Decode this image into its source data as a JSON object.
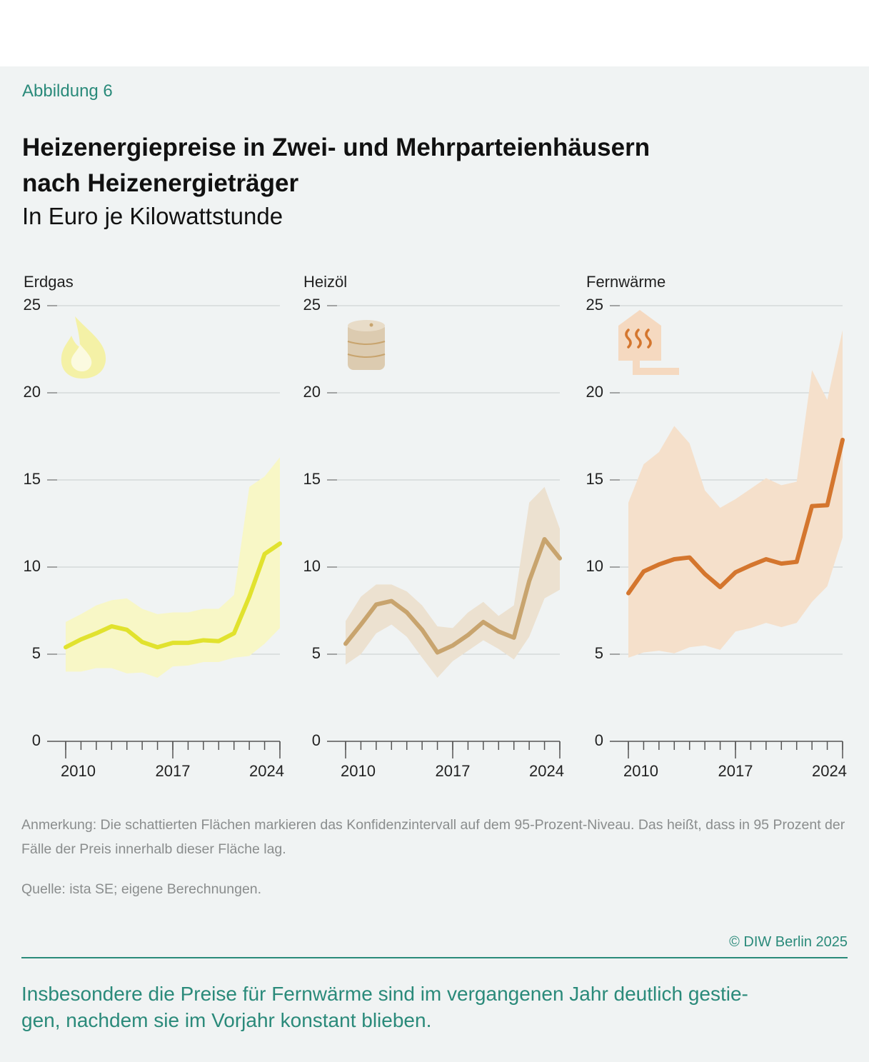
{
  "figure_label": "Abbildung 6",
  "title_lines": [
    "Heizenergiepreise in Zwei- und Mehrparteienhäusern",
    "nach Heizenergieträger"
  ],
  "subtitle": "In Euro je Kilowattstunde",
  "note": "Anmerkung: Die schattierten Flächen markieren das Konfidenzintervall auf dem 95-Prozent-Niveau. Das heißt, dass in 95 Prozent der Fälle der Preis innerhalb dieser Fläche lag.",
  "source": "Quelle: ista SE; eigene Berechnungen.",
  "copyright": "© DIW Berlin 2025",
  "caption_lines": [
    "Insbesondere die Preise für Fernwärme sind im vergangenen Jahr deutlich gestie-",
    "gen, nachdem sie im Vorjahr konstant blieben."
  ],
  "chart_data": [
    {
      "type": "line",
      "title": "Erdgas",
      "color": "#e1e22e",
      "band_color": "#f8f7c6",
      "x": [
        2010,
        2011,
        2012,
        2013,
        2014,
        2015,
        2016,
        2017,
        2018,
        2019,
        2020,
        2021,
        2022,
        2023,
        2024
      ],
      "values": [
        5.4,
        5.85,
        6.2,
        6.6,
        6.4,
        5.7,
        5.4,
        5.65,
        5.65,
        5.8,
        5.75,
        6.2,
        8.3,
        10.75,
        11.35
      ],
      "lower": [
        4.0,
        4.0,
        4.2,
        4.2,
        3.9,
        3.95,
        3.65,
        4.3,
        4.35,
        4.55,
        4.55,
        4.8,
        4.9,
        5.6,
        6.5
      ],
      "upper": [
        6.85,
        7.3,
        7.8,
        8.1,
        8.2,
        7.6,
        7.3,
        7.4,
        7.4,
        7.6,
        7.6,
        8.4,
        14.6,
        15.2,
        16.3
      ],
      "xlim": [
        2010,
        2024
      ],
      "xticks": [
        2010,
        2017,
        2024
      ],
      "ylim": [
        0,
        25
      ],
      "yticks": [
        0,
        5,
        10,
        15,
        20,
        25
      ],
      "grid": true
    },
    {
      "type": "line",
      "title": "Heizöl",
      "color": "#c8a46e",
      "band_color": "#ece1d0",
      "x": [
        2010,
        2011,
        2012,
        2013,
        2014,
        2015,
        2016,
        2017,
        2018,
        2019,
        2020,
        2021,
        2022,
        2023,
        2024
      ],
      "values": [
        5.6,
        6.7,
        7.85,
        8.05,
        7.4,
        6.4,
        5.1,
        5.5,
        6.1,
        6.85,
        6.3,
        5.95,
        9.2,
        11.6,
        10.5
      ],
      "lower": [
        4.4,
        5.0,
        6.2,
        6.7,
        6.0,
        4.8,
        3.65,
        4.6,
        5.2,
        5.8,
        5.3,
        4.7,
        6.0,
        8.2,
        8.7
      ],
      "upper": [
        6.9,
        8.3,
        9.0,
        9.0,
        8.6,
        7.8,
        6.6,
        6.5,
        7.4,
        8.0,
        7.2,
        7.8,
        13.7,
        14.6,
        12.2
      ],
      "xlim": [
        2010,
        2024
      ],
      "xticks": [
        2010,
        2017,
        2024
      ],
      "ylim": [
        0,
        25
      ],
      "yticks": [
        0,
        5,
        10,
        15,
        20,
        25
      ],
      "grid": true
    },
    {
      "type": "line",
      "title": "Fernwärme",
      "color": "#d4762e",
      "band_color": "#f5e0cb",
      "x": [
        2010,
        2011,
        2012,
        2013,
        2014,
        2015,
        2016,
        2017,
        2018,
        2019,
        2020,
        2021,
        2022,
        2023,
        2024
      ],
      "values": [
        8.5,
        9.75,
        10.15,
        10.45,
        10.55,
        9.6,
        8.85,
        9.7,
        10.1,
        10.45,
        10.2,
        10.3,
        13.5,
        13.55,
        17.3
      ],
      "lower": [
        4.8,
        5.1,
        5.2,
        5.05,
        5.4,
        5.5,
        5.25,
        6.3,
        6.5,
        6.8,
        6.55,
        6.8,
        8.0,
        8.9,
        11.7
      ],
      "upper": [
        13.7,
        15.9,
        16.6,
        18.1,
        17.1,
        14.4,
        13.4,
        13.9,
        14.5,
        15.1,
        14.7,
        14.9,
        21.3,
        19.6,
        23.6
      ],
      "xlim": [
        2010,
        2024
      ],
      "xticks": [
        2010,
        2017,
        2024
      ],
      "ylim": [
        0,
        25
      ],
      "yticks": [
        0,
        5,
        10,
        15,
        20,
        25
      ],
      "grid": true
    }
  ]
}
